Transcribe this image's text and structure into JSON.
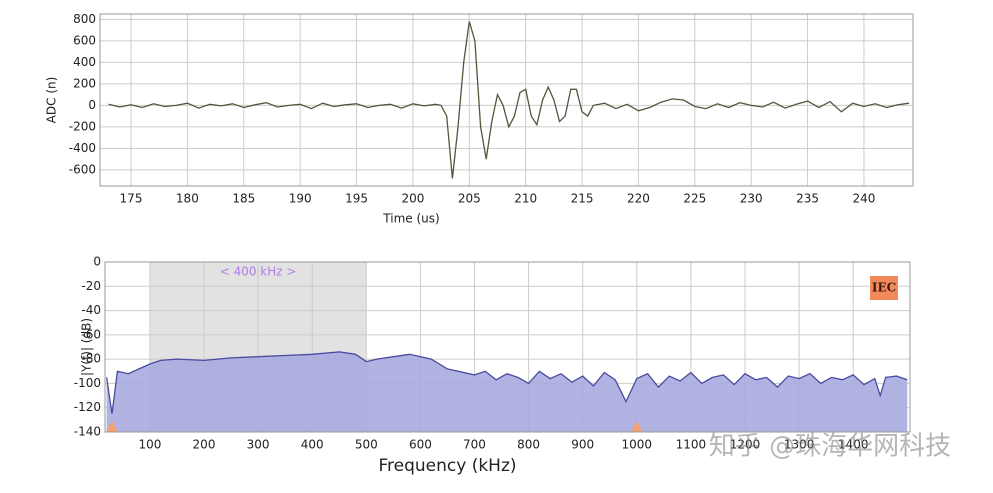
{
  "chart_data": [
    {
      "type": "line",
      "xlabel": "Time (us)",
      "ylabel": "ADC (n)",
      "color": "#4b5a3c",
      "grid": true,
      "x": [
        173,
        174,
        175,
        176,
        177,
        178,
        179,
        180,
        181,
        182,
        183,
        184,
        185,
        186,
        187,
        188,
        189,
        190,
        191,
        192,
        193,
        194,
        195,
        196,
        197,
        198,
        199,
        200,
        201,
        202,
        202.5,
        203,
        203.5,
        204,
        204.5,
        205,
        205.5,
        206,
        206.5,
        207,
        207.5,
        208,
        208.5,
        209,
        209.5,
        210,
        210.5,
        211,
        211.5,
        212,
        212.5,
        213,
        213.5,
        214,
        214.5,
        215,
        215.5,
        216,
        217,
        218,
        219,
        220,
        221,
        222,
        223,
        224,
        225,
        226,
        227,
        228,
        229,
        230,
        231,
        232,
        233,
        234,
        235,
        236,
        237,
        238,
        239,
        240,
        241,
        242,
        243,
        244
      ],
      "values": [
        10,
        -15,
        5,
        -20,
        15,
        -10,
        0,
        20,
        -25,
        10,
        -5,
        15,
        -20,
        5,
        25,
        -15,
        0,
        10,
        -30,
        20,
        -10,
        5,
        15,
        -20,
        0,
        10,
        -25,
        15,
        -5,
        10,
        0,
        -100,
        -680,
        -200,
        400,
        780,
        600,
        -200,
        -500,
        -150,
        100,
        0,
        -200,
        -100,
        120,
        150,
        -100,
        -180,
        50,
        170,
        50,
        -150,
        -100,
        150,
        150,
        -60,
        -100,
        0,
        20,
        -30,
        10,
        -50,
        -20,
        30,
        60,
        50,
        -10,
        -30,
        15,
        -20,
        25,
        0,
        -15,
        30,
        -25,
        10,
        40,
        -20,
        35,
        -60,
        20,
        -10,
        15,
        -20,
        5,
        20
      ],
      "xlim": [
        172.25,
        244.35
      ],
      "ylim": [
        -750,
        850
      ],
      "xticks": [
        175,
        180,
        185,
        190,
        195,
        200,
        205,
        210,
        215,
        220,
        225,
        230,
        235,
        240
      ],
      "yticks": [
        -600,
        -400,
        -200,
        0,
        200,
        400,
        600,
        800
      ]
    },
    {
      "type": "area",
      "xlabel": "Frequency (kHz)",
      "ylabel": "|Y(f)| (dB)",
      "color": "#4a4aa0",
      "fill": "#a9abe0",
      "grid": true,
      "band": [
        100,
        500
      ],
      "band_label": "< 400 kHz >",
      "badge": "IEC",
      "markers": [
        30,
        1000
      ],
      "x": [
        20,
        30,
        40,
        60,
        80,
        100,
        120,
        150,
        200,
        250,
        300,
        350,
        400,
        450,
        480,
        500,
        520,
        550,
        580,
        620,
        650,
        680,
        700,
        720,
        740,
        760,
        780,
        800,
        820,
        840,
        860,
        880,
        900,
        920,
        940,
        960,
        980,
        1000,
        1020,
        1040,
        1060,
        1080,
        1100,
        1120,
        1140,
        1160,
        1180,
        1200,
        1220,
        1240,
        1260,
        1280,
        1300,
        1320,
        1340,
        1360,
        1380,
        1400,
        1420,
        1440,
        1450,
        1460,
        1480,
        1500
      ],
      "values": [
        -95,
        -125,
        -90,
        -92,
        -88,
        -84,
        -81,
        -80,
        -81,
        -79,
        -78,
        -77,
        -76,
        -74,
        -76,
        -82,
        -80,
        -78,
        -76,
        -80,
        -88,
        -91,
        -93,
        -90,
        -97,
        -92,
        -95,
        -100,
        -90,
        -96,
        -92,
        -99,
        -94,
        -102,
        -91,
        -97,
        -115,
        -96,
        -92,
        -103,
        -94,
        -98,
        -91,
        -100,
        -95,
        -93,
        -101,
        -92,
        -97,
        -95,
        -103,
        -94,
        -96,
        -92,
        -100,
        -95,
        -97,
        -93,
        -101,
        -96,
        -110,
        -95,
        -94,
        -97
      ],
      "xlim": [
        17,
        1505
      ],
      "ylim": [
        -140,
        0
      ],
      "xticks": [
        100,
        200,
        300,
        400,
        500,
        600,
        700,
        800,
        900,
        1000,
        1100,
        1200,
        1300,
        1400
      ],
      "yticks": [
        -140,
        -120,
        -100,
        -80,
        -60,
        -40,
        -20,
        0
      ]
    }
  ],
  "watermark": "知乎 @珠海华网科技"
}
